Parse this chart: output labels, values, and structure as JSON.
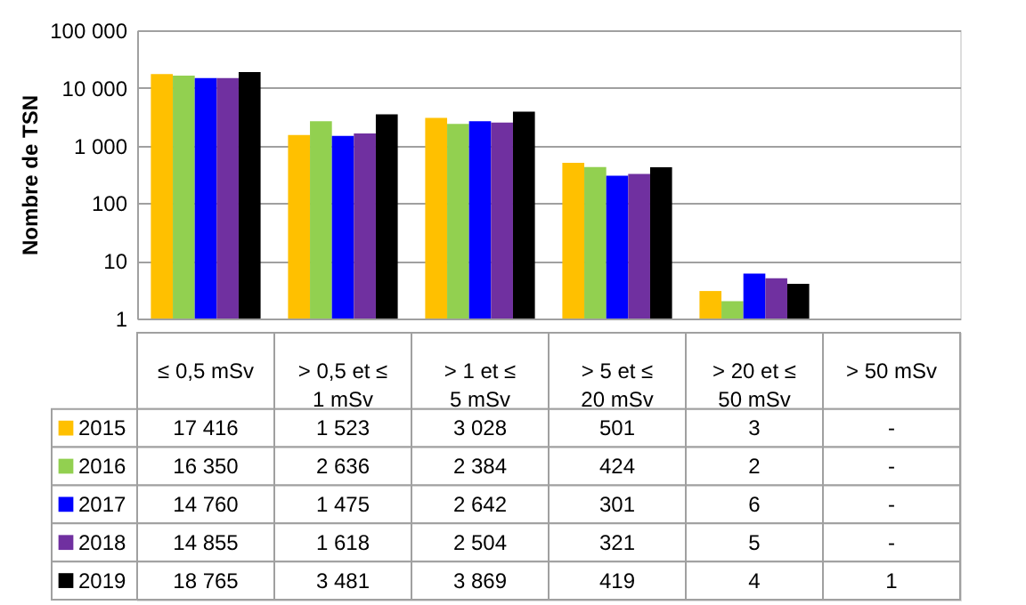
{
  "chart_data": {
    "type": "bar",
    "ylabel": "Nombre de TSN",
    "log": "y",
    "categories": [
      "≤ 0,5 mSv",
      "> 0,5 et ≤ 1 mSv",
      "> 1 et ≤ 5 mSv",
      "> 5 et ≤ 20 mSv",
      "> 20 et ≤ 50 mSv",
      "> 50 mSv"
    ],
    "series": [
      {
        "name": "2015",
        "color": "#ffc000",
        "values": [
          17416,
          1523,
          3028,
          501,
          3,
          null
        ],
        "value_labels": [
          "17 416",
          "1 523",
          "3 028",
          "501",
          "3",
          "-"
        ]
      },
      {
        "name": "2016",
        "color": "#92d050",
        "values": [
          16350,
          2636,
          2384,
          424,
          2,
          null
        ],
        "value_labels": [
          "16 350",
          "2 636",
          "2 384",
          "424",
          "2",
          "-"
        ]
      },
      {
        "name": "2017",
        "color": "#0000ff",
        "values": [
          14760,
          1475,
          2642,
          301,
          6,
          null
        ],
        "value_labels": [
          "14 760",
          "1 475",
          "2 642",
          "301",
          "6",
          "-"
        ]
      },
      {
        "name": "2018",
        "color": "#7030a0",
        "values": [
          14855,
          1618,
          2504,
          321,
          5,
          null
        ],
        "value_labels": [
          "14 855",
          "1 618",
          "2 504",
          "321",
          "5",
          "-"
        ]
      },
      {
        "name": "2019",
        "color": "#000000",
        "values": [
          18765,
          3481,
          3869,
          419,
          4,
          1
        ],
        "value_labels": [
          "18 765",
          "3 481",
          "3 869",
          "419",
          "4",
          "1"
        ]
      }
    ],
    "ylim": [
      1,
      100000
    ],
    "yticks": [
      1,
      10,
      100,
      {
        "value": 1000,
        "label": "1 000"
      },
      {
        "value": 10000,
        "label": "10 000"
      },
      {
        "value": 100000,
        "label": "100 000"
      }
    ],
    "grid": "y",
    "legend": "bottom left"
  }
}
